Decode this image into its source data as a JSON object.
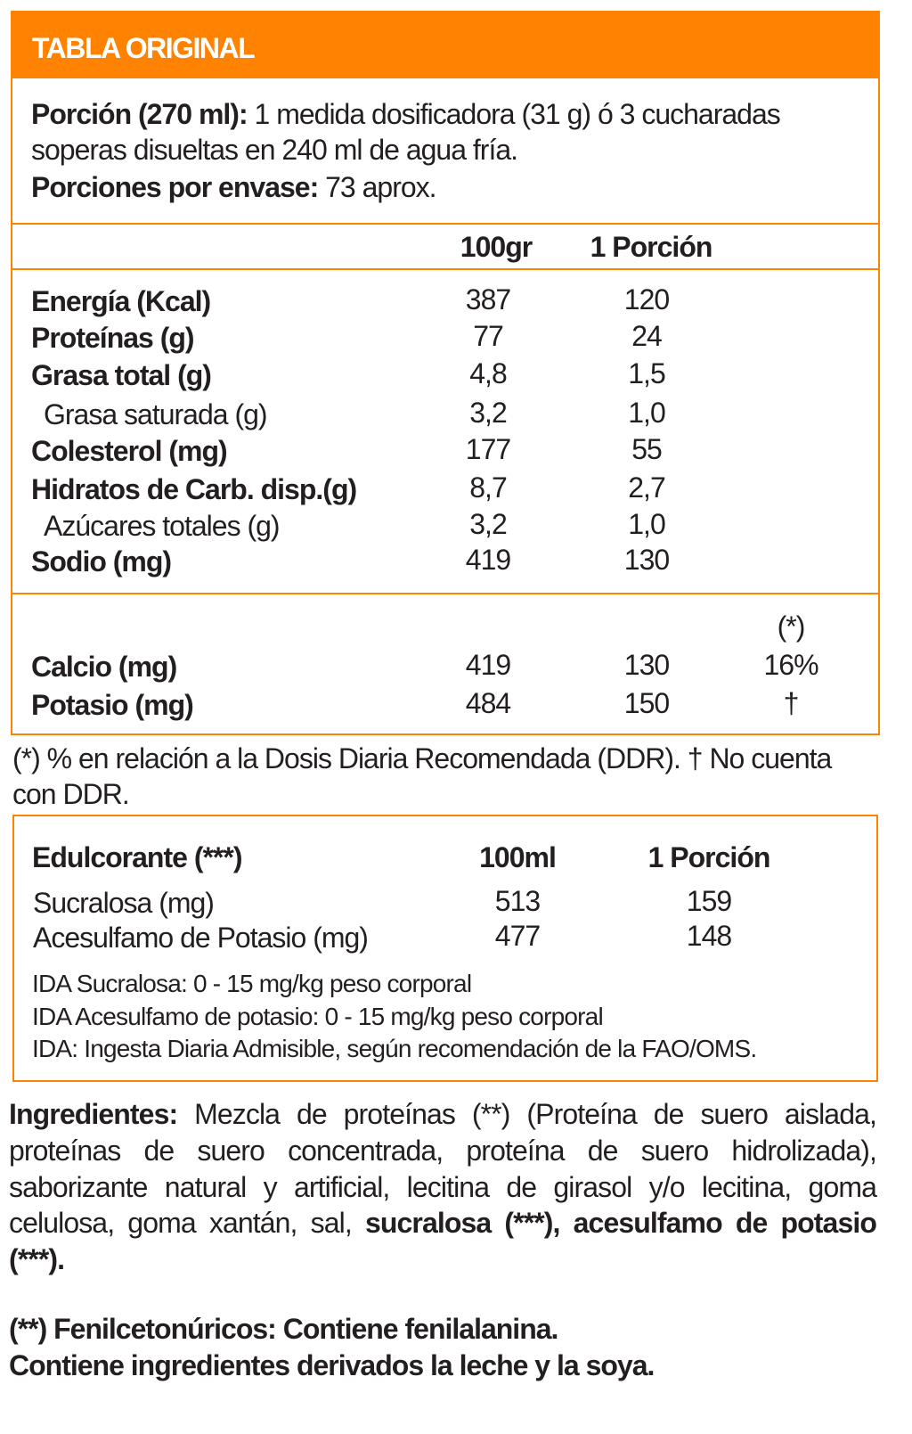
{
  "title": "TABLA ORIGINAL",
  "serving": {
    "portion_label": "Porción (270 ml):",
    "portion_text_1": " 1 medida dosificadora (31 g) ó 3 cucharadas",
    "portion_text_2": "soperas disueltas en 240 ml de agua fría.",
    "servings_label": "Porciones por envase:",
    "servings_value": " 73 aprox."
  },
  "nutrition": {
    "col_100": "100gr",
    "col_portion": "1 Porción",
    "rows": [
      {
        "label": "Energía (Kcal)",
        "v100": "387",
        "vportion": "120"
      },
      {
        "label": "Proteínas (g)",
        "v100": "77",
        "vportion": "24"
      },
      {
        "label": "Grasa total (g)",
        "v100": "4,8",
        "vportion": "1,5"
      },
      {
        "label": "Grasa saturada (g)",
        "v100": "3,2",
        "vportion": "1,0"
      },
      {
        "label": "Colesterol (mg)",
        "v100": "177",
        "vportion": "55"
      },
      {
        "label": "Hidratos de Carb. disp.(g)",
        "v100": "8,7",
        "vportion": "2,7"
      },
      {
        "label": "Azúcares totales (g)",
        "v100": "3,2",
        "vportion": "1,0"
      },
      {
        "label": "Sodio (mg)",
        "v100": "419",
        "vportion": "130"
      }
    ],
    "ddr_header": "(*)",
    "minerals": [
      {
        "label": "Calcio (mg)",
        "v100": "419",
        "vportion": "130",
        "ddr": "16%"
      },
      {
        "label": "Potasio (mg)",
        "v100": "484",
        "vportion": "150",
        "ddr": "†"
      }
    ]
  },
  "footnote_1": "(*) % en relación a la Dosis Diaria Recomendada (DDR).  † No cuenta",
  "footnote_2": "con DDR.",
  "sweetener": {
    "header": "Edulcorante (***)",
    "col_100": "100ml",
    "col_portion": "1 Porción",
    "rows": [
      {
        "label": "Sucralosa (mg)",
        "v100": "513",
        "vportion": "159"
      },
      {
        "label": "Acesulfamo de Potasio (mg)",
        "v100": "477",
        "vportion": "148"
      }
    ],
    "ida_1": "IDA Sucralosa: 0 - 15 mg/kg peso corporal",
    "ida_2": "IDA Acesulfamo de potasio: 0 - 15 mg/kg peso corporal",
    "ida_3": "IDA: Ingesta Diaria Admisible, según recomendación de la FAO/OMS."
  },
  "ingredients": {
    "label": "Ingredientes:",
    "text": "  Mezcla de proteínas (**) (Proteína de suero aislada, proteínas de suero concentrada, proteína de suero hidrolizada), saborizante natural y artificial, lecitina de girasol y/o lecitina, goma celulosa, goma xantán, sal, ",
    "bold_text": "sucralosa (***), acesulfamo de potasio (***)."
  },
  "warning_1": "(**) Fenilcetonúricos: Contiene fenilalanina.",
  "warning_2": "Contiene ingredientes derivados la leche y la soya.",
  "colors": {
    "accent": "#ff8200",
    "text": "#231f20"
  }
}
